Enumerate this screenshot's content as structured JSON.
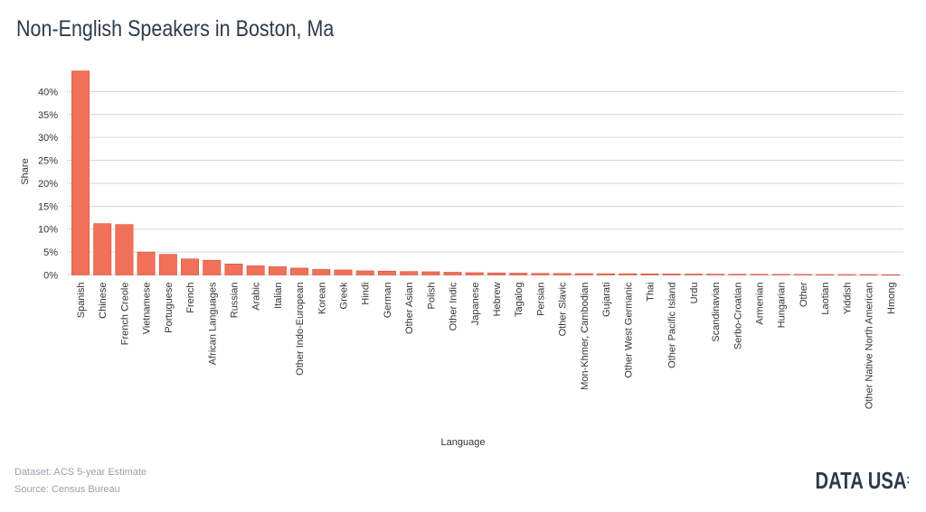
{
  "page": {
    "title": "Non-English Speakers in Boston, Ma",
    "dataset": "Dataset: ACS 5-year Estimate",
    "source": "Source: Census Bureau",
    "logo_text": "DATA USA",
    "logo_mark": ":"
  },
  "colors": {
    "bar": "#f0705a",
    "bar_stroke": "#d4533f",
    "grid": "#d6d6d6",
    "axis_text": "#333333",
    "title": "#2f3b4a"
  },
  "chart_data": {
    "type": "bar",
    "title": "Non-English Speakers in Boston, Ma",
    "xlabel": "Language",
    "ylabel": "Share",
    "ylim": [
      0,
      45
    ],
    "yticks": [
      0,
      5,
      10,
      15,
      20,
      25,
      30,
      35,
      40
    ],
    "ytick_suffix": "%",
    "grid": true,
    "categories": [
      "Spanish",
      "Chinese",
      "French Creole",
      "Vietnamese",
      "Portuguese",
      "French",
      "African Languages",
      "Russian",
      "Arabic",
      "Italian",
      "Other Indo-European",
      "Korean",
      "Greek",
      "Hindi",
      "German",
      "Other Asian",
      "Polish",
      "Other Indic",
      "Japanese",
      "Hebrew",
      "Tagalog",
      "Persian",
      "Other Slavic",
      "Mon-Khmer, Cambodian",
      "Gujarati",
      "Other West Germanic",
      "Thai",
      "Other Pacific Island",
      "Urdu",
      "Scandinavian",
      "Serbo-Croatian",
      "Armenian",
      "Hungarian",
      "Other",
      "Laotian",
      "Yiddish",
      "Other Native North American",
      "Hmong"
    ],
    "values": [
      44.5,
      11.2,
      11.0,
      5.0,
      4.5,
      3.5,
      3.2,
      2.4,
      2.0,
      1.8,
      1.5,
      1.2,
      1.1,
      0.9,
      0.85,
      0.75,
      0.7,
      0.6,
      0.5,
      0.45,
      0.4,
      0.35,
      0.33,
      0.3,
      0.28,
      0.27,
      0.25,
      0.23,
      0.2,
      0.18,
      0.16,
      0.15,
      0.13,
      0.12,
      0.1,
      0.09,
      0.08,
      0.06
    ]
  }
}
